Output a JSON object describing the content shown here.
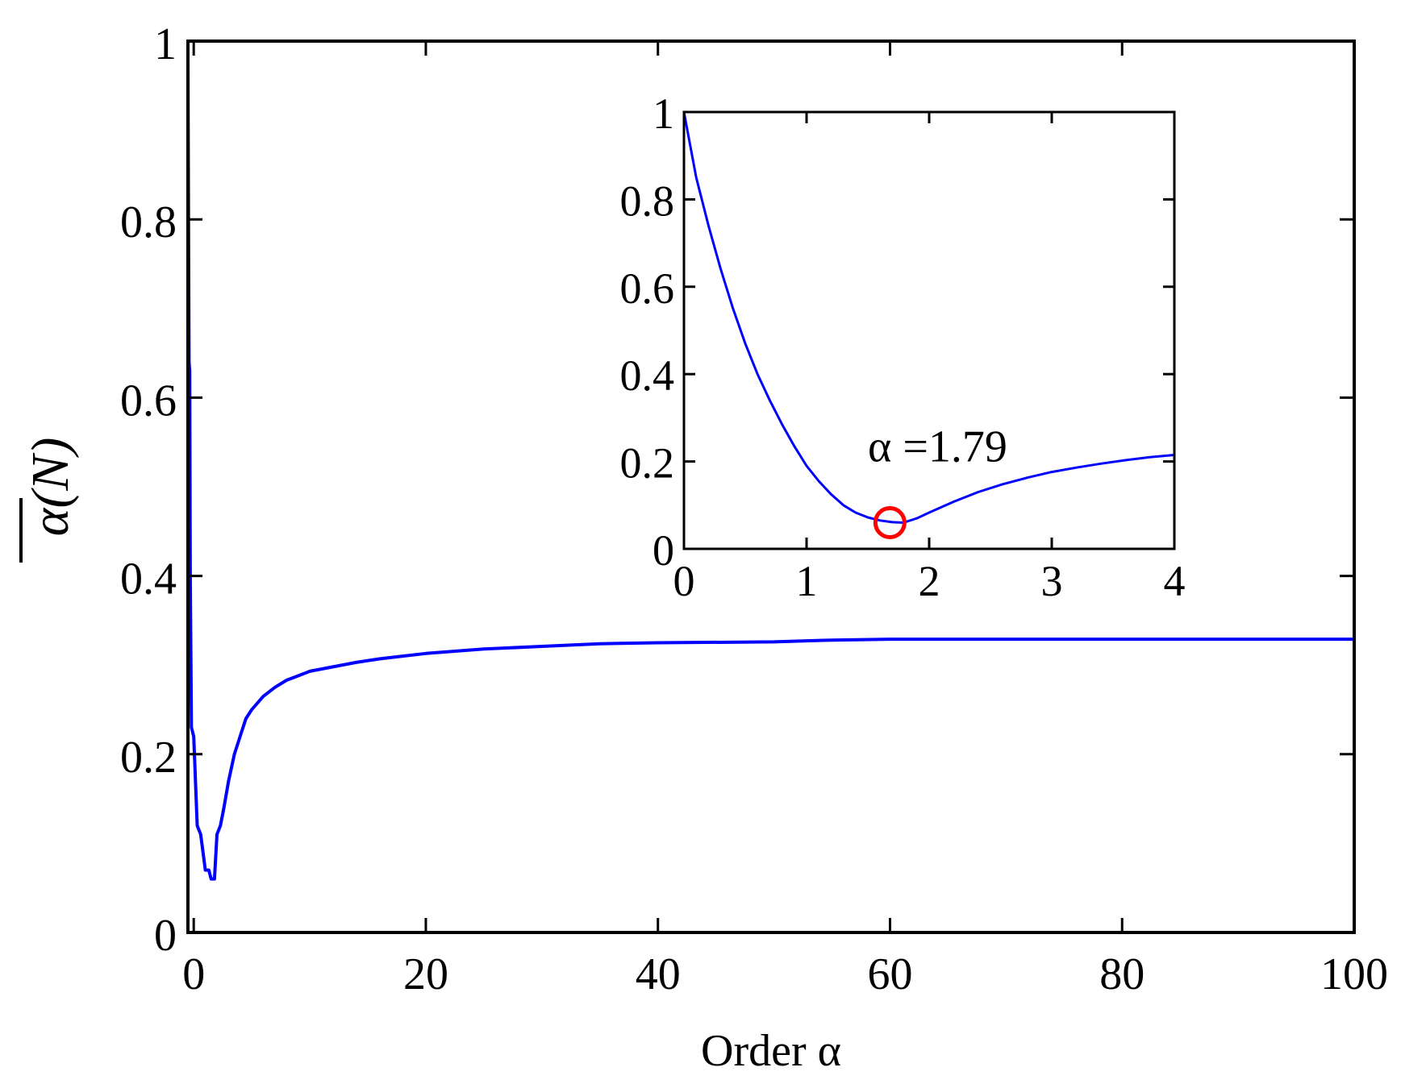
{
  "chart_data": [
    {
      "id": "main",
      "type": "line",
      "xlabel": "Order α",
      "ylabel": "α(N)",
      "xlim": [
        -0.5,
        100
      ],
      "ylim": [
        0,
        1
      ],
      "xticks": [
        0,
        20,
        40,
        60,
        80,
        100
      ],
      "xtick_labels": [
        "0",
        "20",
        "40",
        "60",
        "80",
        "100"
      ],
      "yticks": [
        0,
        0.2,
        0.4,
        0.6,
        0.8,
        1
      ],
      "ytick_labels": [
        "0",
        "0.2",
        "0.4",
        "0.6",
        "0.8",
        "1"
      ],
      "grid": false,
      "series": [
        {
          "color": "#0000ff",
          "x": [
            -0.5,
            -0.4,
            -0.35,
            -0.3,
            -0.2,
            0.0,
            0.3,
            0.6,
            1.0,
            1.3,
            1.5,
            1.79,
            2.0,
            2.3,
            2.6,
            3.0,
            3.5,
            4.0,
            4.5,
            5.0,
            6.0,
            7.0,
            8.0,
            9.0,
            10.0,
            12.0,
            14.0,
            16.0,
            18.0,
            20.0,
            25.0,
            30.0,
            35.0,
            40.0,
            50.0,
            55.0,
            60.0,
            70.0,
            80.0,
            90.0,
            100.0
          ],
          "y": [
            0.98,
            0.64,
            0.63,
            0.4,
            0.23,
            0.22,
            0.12,
            0.11,
            0.07,
            0.07,
            0.06,
            0.06,
            0.11,
            0.12,
            0.14,
            0.17,
            0.2,
            0.22,
            0.24,
            0.25,
            0.265,
            0.275,
            0.283,
            0.288,
            0.293,
            0.298,
            0.303,
            0.307,
            0.31,
            0.313,
            0.318,
            0.321,
            0.324,
            0.325,
            0.326,
            0.328,
            0.329,
            0.329,
            0.329,
            0.329,
            0.329
          ]
        }
      ]
    },
    {
      "id": "inset",
      "type": "line",
      "xlim": [
        0,
        4
      ],
      "ylim": [
        0,
        1
      ],
      "xticks": [
        0,
        1,
        2,
        3,
        4
      ],
      "xtick_labels": [
        "0",
        "1",
        "2",
        "3",
        "4"
      ],
      "yticks": [
        0,
        0.2,
        0.4,
        0.6,
        0.8,
        1
      ],
      "ytick_labels": [
        "0",
        "0.2",
        "0.4",
        "0.6",
        "0.8",
        "1"
      ],
      "grid": false,
      "series": [
        {
          "color": "#0000ff",
          "x": [
            0,
            0.1,
            0.2,
            0.3,
            0.4,
            0.5,
            0.6,
            0.7,
            0.8,
            0.9,
            1.0,
            1.1,
            1.2,
            1.3,
            1.4,
            1.5,
            1.6,
            1.7,
            1.79,
            1.9,
            2.0,
            2.2,
            2.4,
            2.6,
            2.8,
            3.0,
            3.2,
            3.4,
            3.6,
            3.8,
            4.0
          ],
          "y": [
            1.0,
            0.85,
            0.74,
            0.64,
            0.55,
            0.47,
            0.4,
            0.34,
            0.285,
            0.235,
            0.19,
            0.155,
            0.125,
            0.1,
            0.083,
            0.072,
            0.065,
            0.061,
            0.06,
            0.07,
            0.083,
            0.108,
            0.13,
            0.148,
            0.163,
            0.176,
            0.186,
            0.195,
            0.203,
            0.21,
            0.215
          ]
        }
      ],
      "marker": {
        "x": 1.68,
        "y": 0.06,
        "color": "#ff0000"
      },
      "annotation": {
        "text": "α =1.79",
        "x": 1.5,
        "y": 0.2
      }
    }
  ]
}
